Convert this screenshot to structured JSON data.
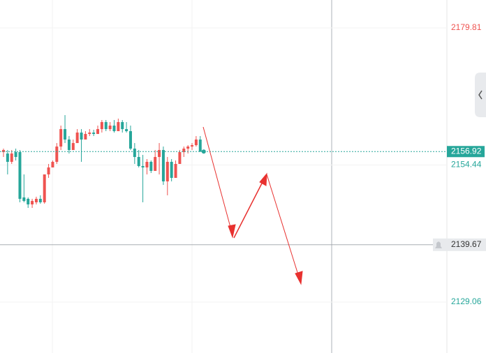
{
  "chart_data": {
    "type": "candlestick",
    "up_color": "#ef5350",
    "down_color": "#26a69a",
    "open": [
      2156.82,
      2156.56,
      2155.02,
      2156.82,
      2156.82,
      2148.43,
      2148.17,
      2147.14,
      2147.53,
      2148.17,
      2147.53,
      2152.69,
      2153.98,
      2155.02,
      2157.85,
      2161.08,
      2159.15,
      2157.21,
      2158.5,
      2160.44,
      2159.15,
      2160.18,
      2160.44,
      2160.18,
      2161.08,
      2162.38,
      2161.08,
      2161.73,
      2160.7,
      2162.38,
      2161.08,
      2160.7,
      2157.47,
      2155.92,
      2154.24,
      2153.98,
      2155.02,
      2153.34,
      2155.92,
      2157.21,
      2151.4,
      2155.02,
      2152.05,
      2154.63,
      2156.82,
      2157.47,
      2157.85,
      2158.11,
      2159.15
    ],
    "high": [
      2157.47,
      2157.21,
      2157.21,
      2157.47,
      2157.21,
      2152.69,
      2148.43,
      2148.17,
      2148.56,
      2148.82,
      2152.69,
      2154.63,
      2155.27,
      2158.5,
      2161.73,
      2163.67,
      2159.79,
      2159.15,
      2161.08,
      2161.08,
      2160.7,
      2161.08,
      2160.96,
      2161.73,
      2162.76,
      2162.76,
      2162.38,
      2162.76,
      2163.02,
      2162.76,
      2162.38,
      2161.73,
      2158.5,
      2157.21,
      2156.31,
      2155.53,
      2155.27,
      2157.21,
      2158.5,
      2157.85,
      2155.92,
      2155.53,
      2155.27,
      2157.21,
      2157.85,
      2158.11,
      2158.5,
      2159.79,
      2159.79
    ],
    "low": [
      2155.92,
      2152.69,
      2154.63,
      2155.27,
      2147.53,
      2147.53,
      2146.49,
      2146.49,
      2147.14,
      2147.27,
      2147.27,
      2152.05,
      2153.98,
      2154.63,
      2157.21,
      2158.5,
      2156.56,
      2157.21,
      2158.5,
      2155.02,
      2159.15,
      2159.79,
      2159.79,
      2160.18,
      2160.44,
      2160.7,
      2160.7,
      2160.44,
      2160.7,
      2160.44,
      2160.44,
      2157.21,
      2154.63,
      2153.98,
      2147.53,
      2152.69,
      2152.95,
      2153.34,
      2152.69,
      2150.75,
      2148.82,
      2151.4,
      2152.05,
      2154.63,
      2155.92,
      2156.56,
      2157.21,
      2157.85,
      2156.82
    ],
    "close": [
      2157.21,
      2155.02,
      2156.56,
      2155.92,
      2148.17,
      2147.78,
      2147.14,
      2147.78,
      2148.17,
      2147.53,
      2152.69,
      2153.98,
      2155.02,
      2157.85,
      2161.08,
      2159.15,
      2157.21,
      2158.5,
      2160.44,
      2159.15,
      2160.18,
      2160.44,
      2160.18,
      2161.08,
      2162.38,
      2161.08,
      2161.73,
      2160.7,
      2162.38,
      2161.08,
      2160.7,
      2157.47,
      2155.92,
      2154.24,
      2153.98,
      2155.02,
      2153.34,
      2155.92,
      2157.21,
      2151.4,
      2155.02,
      2152.05,
      2154.63,
      2156.82,
      2157.47,
      2157.85,
      2158.11,
      2159.15,
      2156.92
    ],
    "ylim": [
      2119.63,
      2184.98
    ],
    "yticks": [
      2179.81,
      2154.44,
      2129.06
    ],
    "ytick_colors": [
      "#ef5350",
      "#26a69a",
      "#26a69a"
    ],
    "last_price": 2156.92,
    "crosshair_price": 2139.67
  }
}
